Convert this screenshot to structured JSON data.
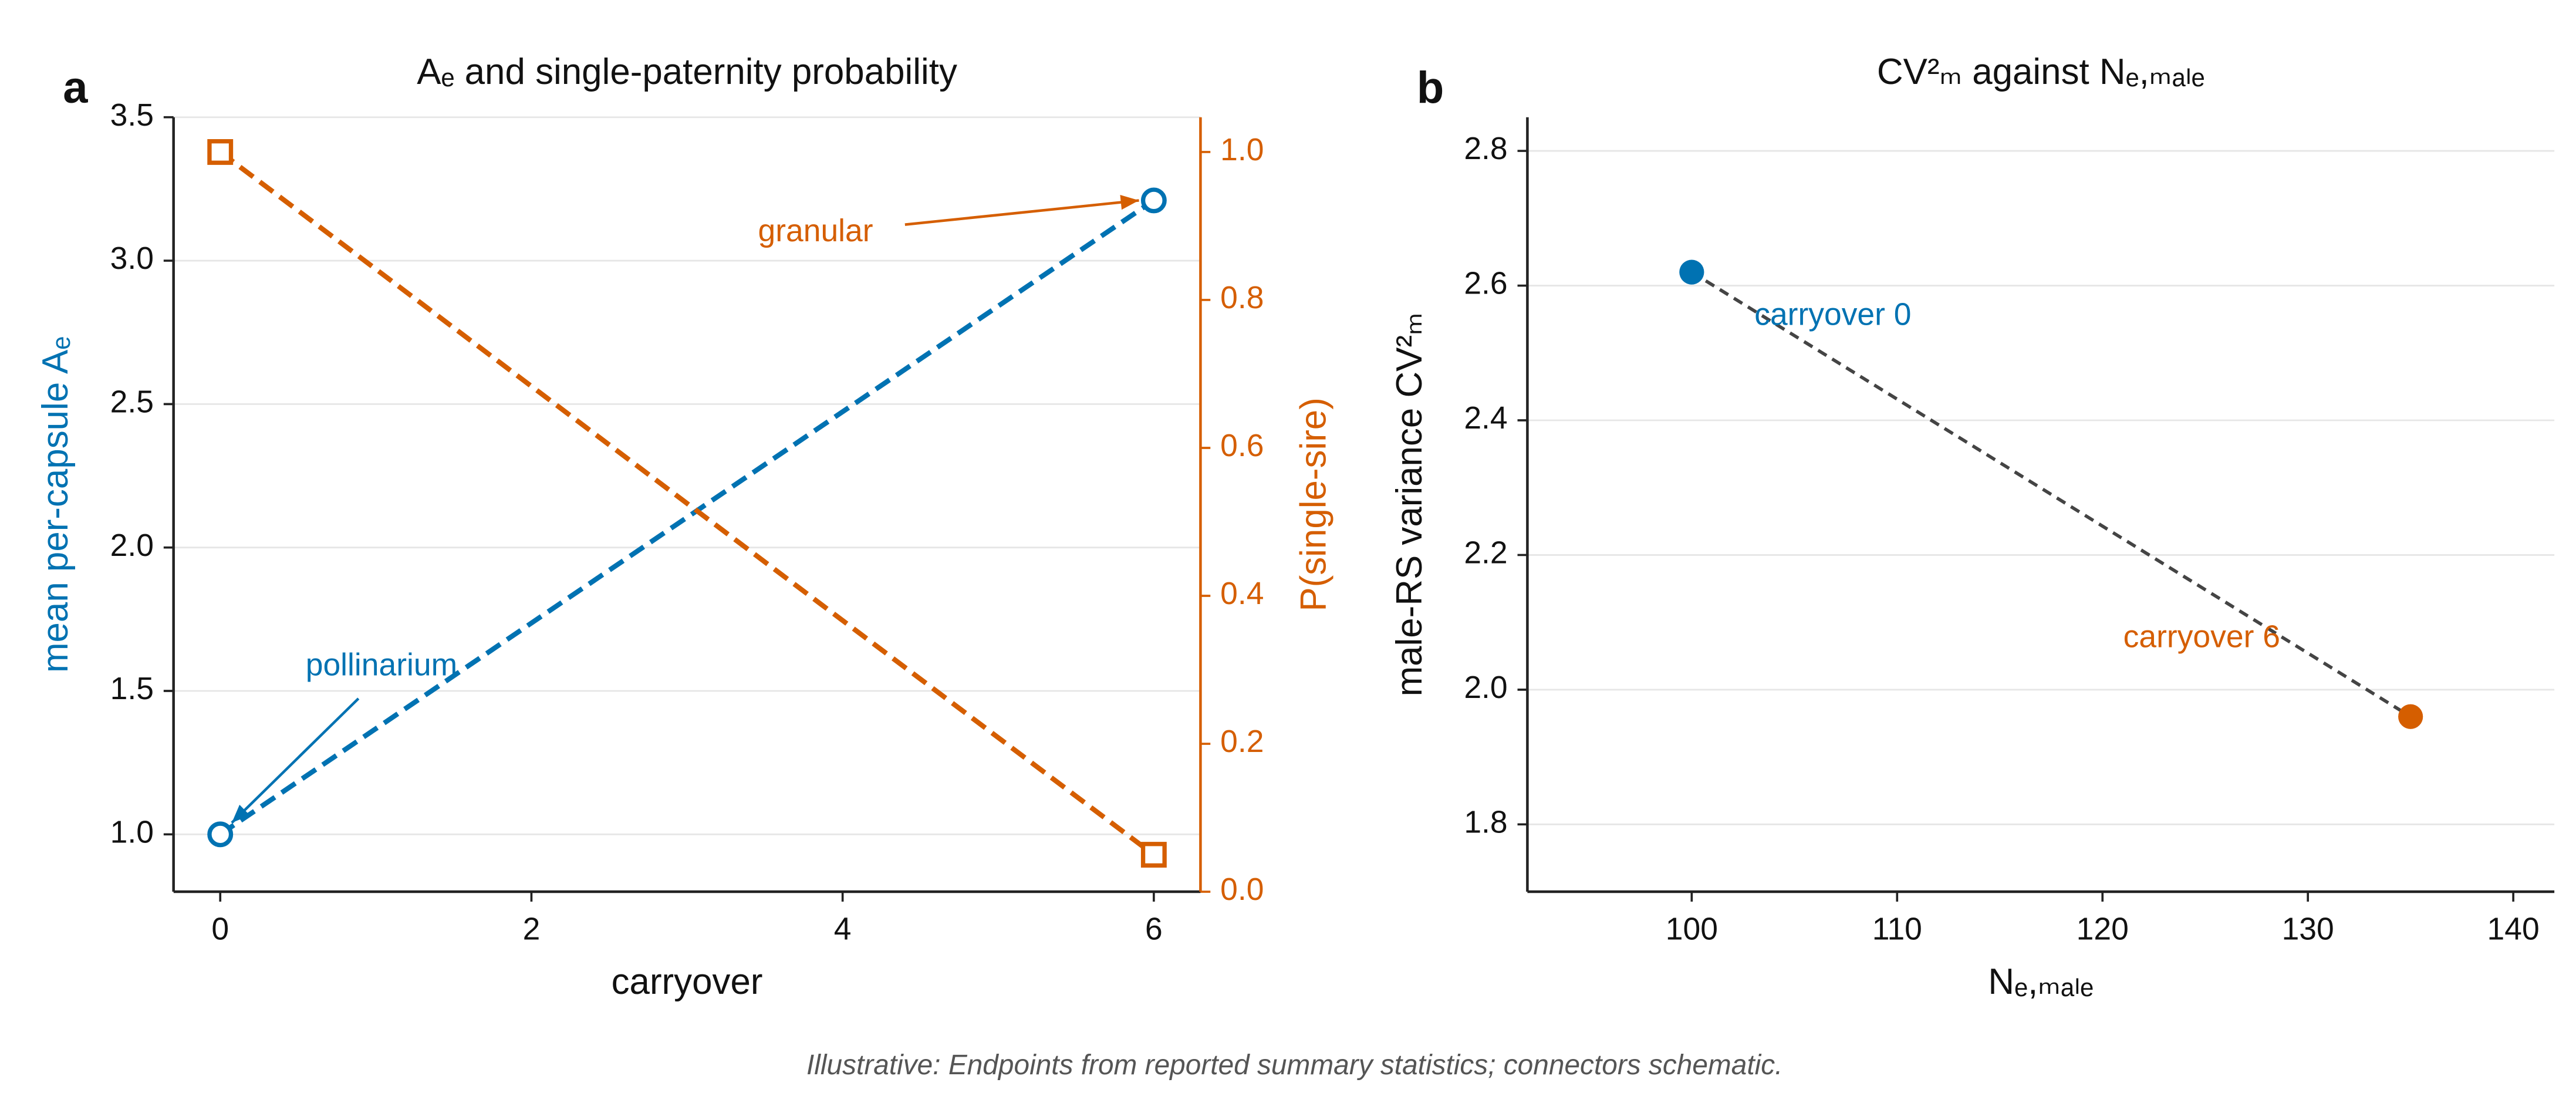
{
  "chart_data": [
    {
      "type": "line",
      "panel": "a",
      "title": "Aₑ and single-paternity probability",
      "xlabel": "carryover",
      "ylabel": "mean per-capsule Aₑ",
      "y2label": "P(single-sire)",
      "x": [
        0,
        6
      ],
      "series": [
        {
          "name": "mean per-capsule Aₑ",
          "color": "#0072b2",
          "marker": "circle",
          "values": [
            1.0,
            3.21
          ]
        },
        {
          "name": "P(single-sire)",
          "color": "#d55e00",
          "marker": "square",
          "axis": "y2",
          "values": [
            1.0,
            0.05
          ]
        }
      ],
      "annotations": [
        "pollinarium",
        "granular"
      ],
      "annotation_colors": [
        "#0072b2",
        "#d55e00"
      ],
      "xlim": [
        -0.3,
        6.3
      ],
      "xticks": [
        0,
        2,
        4,
        6
      ],
      "ylim": [
        0.8,
        3.5
      ],
      "yticks": [
        {
          "value": 1,
          "label": "1.0"
        },
        1.5,
        {
          "value": 2,
          "label": "2.0"
        },
        2.5,
        {
          "value": 3,
          "label": "3.0"
        },
        3.5
      ],
      "y2lim": [
        0,
        1.047
      ],
      "y2ticks": [
        {
          "value": 0,
          "label": "0.0"
        },
        0.2,
        0.4,
        0.6,
        0.8,
        {
          "value": 1,
          "label": "1.0"
        }
      ],
      "grid": true
    },
    {
      "type": "scatter",
      "panel": "b",
      "title": "CV²ₘ against Nₑ,ₘₐₗₑ",
      "xlabel": "Nₑ,ₘₐₗₑ",
      "ylabel": "male-RS variance CV²ₘ",
      "x": [
        100,
        135
      ],
      "values": [
        2.62,
        1.96
      ],
      "colors": [
        "#0072b2",
        "#d55e00"
      ],
      "point_labels": [
        "carryover 0",
        "carryover 6"
      ],
      "line_color": "#444444",
      "xlim": [
        92,
        142
      ],
      "xticks": [
        100,
        110,
        120,
        130,
        140
      ],
      "ylim": [
        1.7,
        2.85
      ],
      "yticks": [
        1.8,
        {
          "value": 2,
          "label": "2.0"
        },
        2.2,
        2.4,
        2.6,
        2.8
      ],
      "grid": true
    }
  ],
  "caption": "Illustrative: Endpoints from reported summary statistics; connectors schematic."
}
